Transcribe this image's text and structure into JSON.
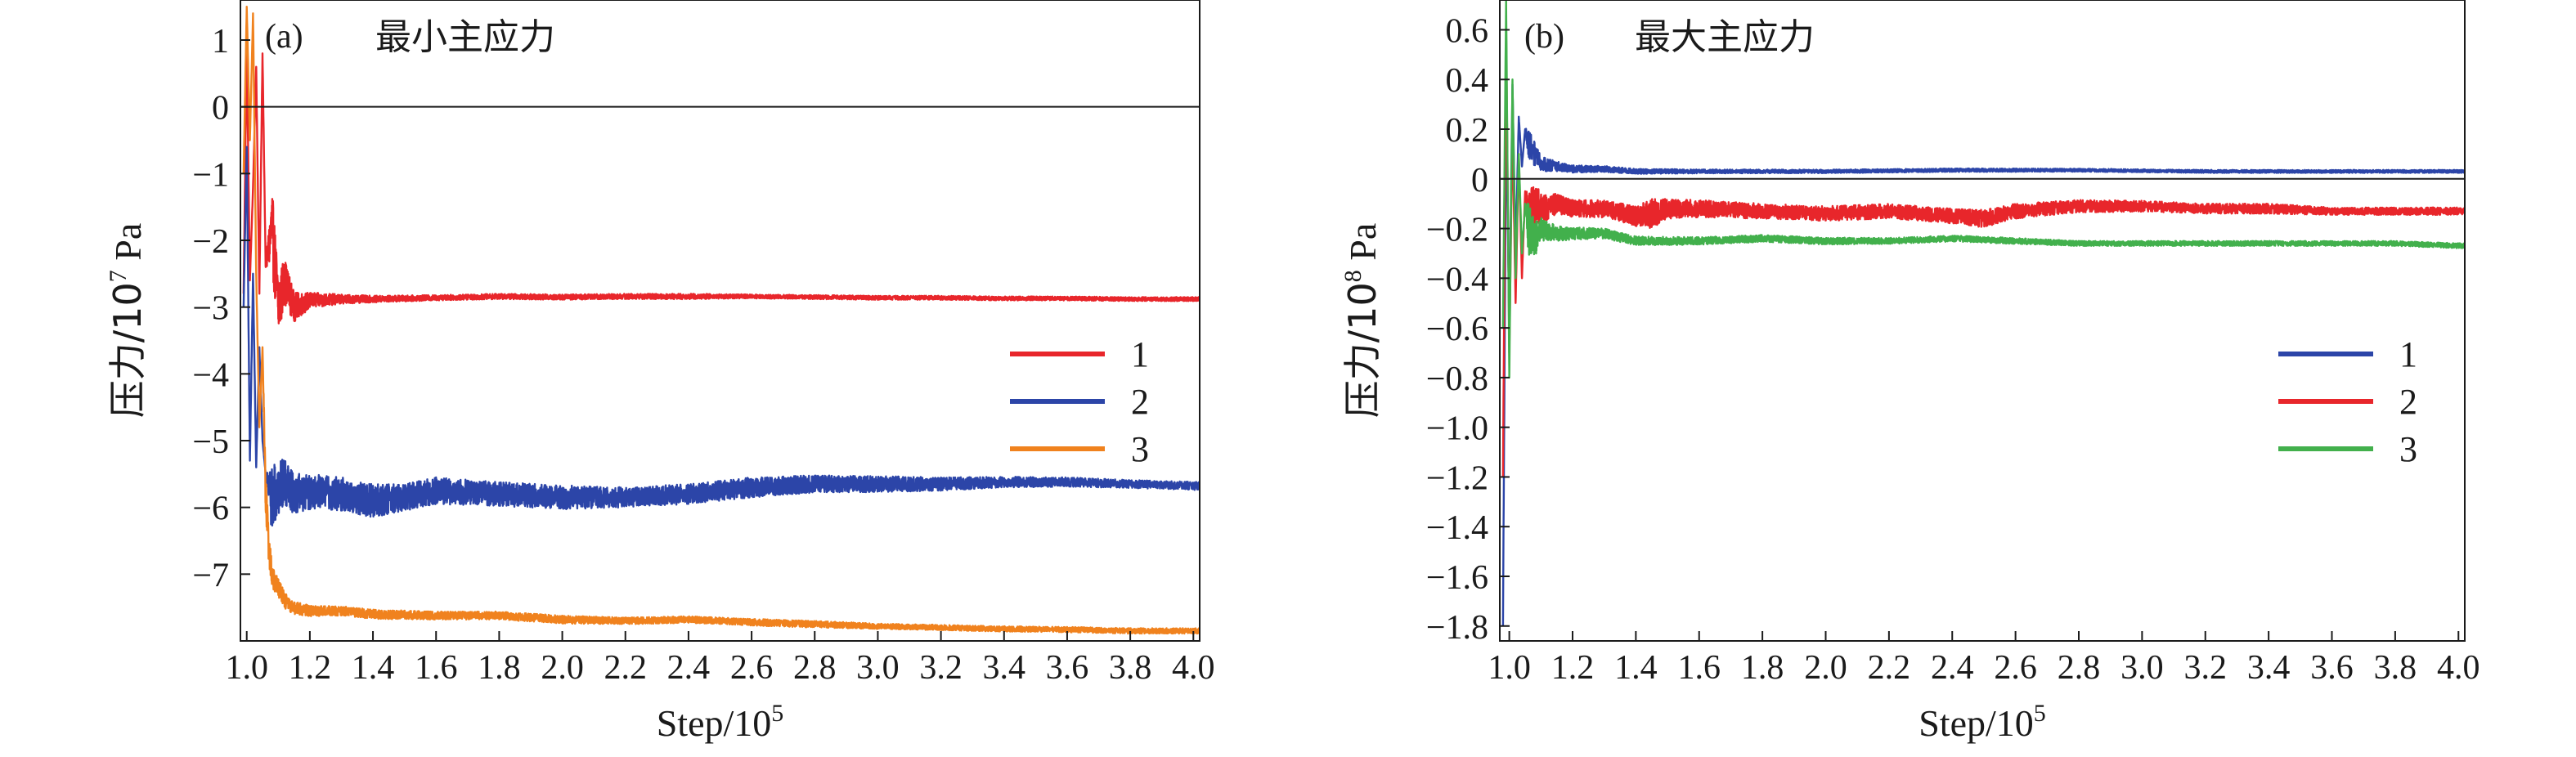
{
  "chart_data": [
    {
      "panel_label": "(a)",
      "title": "最小主应力",
      "type": "line",
      "ylabel_main": "压力/10",
      "ylabel_exp": "7",
      "ylabel_unit": " Pa",
      "xlabel_main": "Step/10",
      "xlabel_exp": "5",
      "xlim": [
        0.98,
        4.02
      ],
      "ylim": [
        -8.0,
        1.6
      ],
      "x_ticks": [
        1.0,
        1.2,
        1.4,
        1.6,
        1.8,
        2.0,
        2.2,
        2.4,
        2.6,
        2.8,
        3.0,
        3.2,
        3.4,
        3.6,
        3.8,
        4.0
      ],
      "x_tick_labels": [
        "1.0",
        "1.2",
        "1.4",
        "1.6",
        "1.8",
        "2.0",
        "2.2",
        "2.4",
        "2.6",
        "2.8",
        "3.0",
        "3.2",
        "3.4",
        "3.6",
        "3.8",
        "4.0"
      ],
      "y_ticks": [
        1,
        0,
        -1,
        -2,
        -3,
        -4,
        -5,
        -6,
        -7
      ],
      "y_tick_labels": [
        "1",
        "0",
        "−1",
        "−2",
        "−3",
        "−4",
        "−5",
        "−6",
        "−7"
      ],
      "reference_line_y": 0,
      "legend_position": "center-right",
      "grid": false,
      "series": [
        {
          "name": "1",
          "color": "#e8262b",
          "x": [
            0.99,
            1.0,
            1.01,
            1.02,
            1.03,
            1.04,
            1.05,
            1.06,
            1.08,
            1.1,
            1.12,
            1.15,
            1.2,
            1.3,
            1.4,
            1.6,
            1.8,
            2.0,
            2.2,
            2.4,
            2.6,
            2.8,
            3.0,
            3.2,
            3.4,
            3.6,
            3.8,
            4.02
          ],
          "y": [
            -2.8,
            0.9,
            -2.6,
            -1.2,
            0.6,
            -2.8,
            0.8,
            -2.4,
            -1.8,
            -3.0,
            -2.6,
            -3.0,
            -2.9,
            -2.88,
            -2.88,
            -2.86,
            -2.84,
            -2.85,
            -2.84,
            -2.84,
            -2.84,
            -2.85,
            -2.86,
            -2.86,
            -2.87,
            -2.87,
            -2.88,
            -2.88
          ],
          "noise": [
            0,
            0,
            0,
            0,
            0,
            0,
            0,
            0,
            0.6,
            0.5,
            0.35,
            0.22,
            0.12,
            0.07,
            0.05,
            0.04,
            0.04,
            0.04,
            0.04,
            0.04,
            0.03,
            0.03,
            0.03,
            0.03,
            0.03,
            0.03,
            0.03,
            0.03
          ]
        },
        {
          "name": "2",
          "color": "#2c45a8",
          "x": [
            0.99,
            1.0,
            1.01,
            1.02,
            1.03,
            1.04,
            1.05,
            1.06,
            1.08,
            1.1,
            1.12,
            1.15,
            1.2,
            1.3,
            1.4,
            1.5,
            1.6,
            1.8,
            2.0,
            2.2,
            2.4,
            2.6,
            2.8,
            3.0,
            3.2,
            3.4,
            3.6,
            3.8,
            4.02
          ],
          "y": [
            -3.0,
            -0.6,
            -5.3,
            -2.5,
            -5.4,
            -3.6,
            -5.0,
            -5.5,
            -5.9,
            -5.7,
            -5.6,
            -5.8,
            -5.75,
            -5.8,
            -5.9,
            -5.85,
            -5.75,
            -5.8,
            -5.85,
            -5.85,
            -5.8,
            -5.7,
            -5.65,
            -5.65,
            -5.65,
            -5.62,
            -5.62,
            -5.65,
            -5.68
          ],
          "noise": [
            0,
            0,
            0,
            0,
            0,
            0,
            0,
            0,
            0.5,
            0.4,
            0.35,
            0.3,
            0.28,
            0.25,
            0.25,
            0.2,
            0.2,
            0.18,
            0.18,
            0.15,
            0.15,
            0.15,
            0.13,
            0.12,
            0.1,
            0.08,
            0.07,
            0.06,
            0.06
          ]
        },
        {
          "name": "3",
          "color": "#f0821e",
          "x": [
            0.99,
            1.0,
            1.01,
            1.02,
            1.03,
            1.04,
            1.05,
            1.06,
            1.07,
            1.08,
            1.1,
            1.12,
            1.15,
            1.2,
            1.3,
            1.4,
            1.6,
            1.8,
            2.0,
            2.2,
            2.4,
            2.6,
            2.8,
            3.0,
            3.2,
            3.4,
            3.6,
            3.8,
            4.02
          ],
          "y": [
            -1.0,
            1.5,
            -0.5,
            1.4,
            -2.5,
            -4.8,
            -3.6,
            -5.8,
            -6.6,
            -7.0,
            -7.2,
            -7.4,
            -7.5,
            -7.55,
            -7.55,
            -7.6,
            -7.62,
            -7.62,
            -7.68,
            -7.7,
            -7.68,
            -7.72,
            -7.75,
            -7.78,
            -7.8,
            -7.82,
            -7.83,
            -7.85,
            -7.85
          ],
          "noise": [
            0,
            0,
            0,
            0,
            0,
            0,
            0,
            0.3,
            0.25,
            0.2,
            0.15,
            0.12,
            0.1,
            0.08,
            0.07,
            0.07,
            0.06,
            0.06,
            0.06,
            0.05,
            0.05,
            0.05,
            0.05,
            0.04,
            0.04,
            0.04,
            0.04,
            0.04,
            0.04
          ]
        }
      ]
    },
    {
      "panel_label": "(b)",
      "title": "最大主应力",
      "type": "line",
      "ylabel_main": "压力/10",
      "ylabel_exp": "8",
      "ylabel_unit": " Pa",
      "xlabel_main": "Step/10",
      "xlabel_exp": "5",
      "xlim": [
        0.97,
        4.02
      ],
      "ylim": [
        -1.86,
        0.72
      ],
      "x_ticks": [
        1.0,
        1.2,
        1.4,
        1.6,
        1.8,
        2.0,
        2.2,
        2.4,
        2.6,
        2.8,
        3.0,
        3.2,
        3.4,
        3.6,
        3.8,
        4.0
      ],
      "x_tick_labels": [
        "1.0",
        "1.2",
        "1.4",
        "1.6",
        "1.8",
        "2.0",
        "2.2",
        "2.4",
        "2.6",
        "2.8",
        "3.0",
        "3.2",
        "3.4",
        "3.6",
        "3.8",
        "4.0"
      ],
      "y_ticks": [
        0.6,
        0.4,
        0.2,
        0,
        -0.2,
        -0.4,
        -0.6,
        -0.8,
        -1.0,
        -1.2,
        -1.4,
        -1.6,
        -1.8
      ],
      "y_tick_labels": [
        "0.6",
        "0.4",
        "0.2",
        "0",
        "−0.2",
        "−0.4",
        "−0.6",
        "−0.8",
        "−1.0",
        "−1.2",
        "−1.4",
        "−1.6",
        "−1.8"
      ],
      "reference_line_y": 0,
      "legend_position": "center-right",
      "grid": false,
      "series": [
        {
          "name": "1",
          "color": "#2c45a8",
          "x": [
            0.98,
            0.99,
            1.0,
            1.01,
            1.02,
            1.03,
            1.04,
            1.05,
            1.06,
            1.08,
            1.1,
            1.15,
            1.2,
            1.3,
            1.4,
            1.6,
            2.0,
            2.4,
            2.8,
            3.2,
            3.6,
            4.02
          ],
          "y": [
            -1.8,
            0.3,
            -0.6,
            0.38,
            -0.3,
            0.25,
            0.05,
            0.2,
            0.15,
            0.1,
            0.06,
            0.05,
            0.04,
            0.04,
            0.03,
            0.03,
            0.03,
            0.035,
            0.035,
            0.03,
            0.03,
            0.03
          ],
          "noise": [
            0,
            0,
            0,
            0,
            0,
            0,
            0,
            0,
            0.06,
            0.05,
            0.03,
            0.02,
            0.015,
            0.012,
            0.01,
            0.008,
            0.007,
            0.007,
            0.006,
            0.006,
            0.006,
            0.006
          ]
        },
        {
          "name": "2",
          "color": "#e8262b",
          "x": [
            0.98,
            0.99,
            1.0,
            1.01,
            1.02,
            1.03,
            1.04,
            1.05,
            1.06,
            1.08,
            1.1,
            1.15,
            1.2,
            1.3,
            1.4,
            1.45,
            1.5,
            1.6,
            1.8,
            2.0,
            2.2,
            2.4,
            2.5,
            2.6,
            2.8,
            3.0,
            3.2,
            3.4,
            3.6,
            3.8,
            4.02
          ],
          "y": [
            -1.2,
            0.6,
            -0.7,
            0.2,
            -0.5,
            0.1,
            -0.4,
            -0.05,
            -0.15,
            -0.1,
            -0.12,
            -0.1,
            -0.12,
            -0.12,
            -0.15,
            -0.14,
            -0.12,
            -0.12,
            -0.13,
            -0.14,
            -0.13,
            -0.15,
            -0.16,
            -0.13,
            -0.11,
            -0.11,
            -0.12,
            -0.12,
            -0.13,
            -0.13,
            -0.13
          ],
          "noise": [
            0,
            0,
            0,
            0,
            0,
            0,
            0,
            0,
            0.12,
            0.09,
            0.06,
            0.04,
            0.035,
            0.035,
            0.04,
            0.06,
            0.04,
            0.035,
            0.03,
            0.03,
            0.03,
            0.03,
            0.035,
            0.03,
            0.025,
            0.022,
            0.02,
            0.02,
            0.015,
            0.015,
            0.015
          ]
        },
        {
          "name": "3",
          "color": "#42b04c",
          "x": [
            0.98,
            0.99,
            1.0,
            1.01,
            1.02,
            1.03,
            1.04,
            1.05,
            1.06,
            1.08,
            1.1,
            1.15,
            1.2,
            1.3,
            1.4,
            1.6,
            1.8,
            2.0,
            2.2,
            2.4,
            2.6,
            2.8,
            3.0,
            3.2,
            3.4,
            3.6,
            3.8,
            4.02
          ],
          "y": [
            -0.6,
            0.72,
            -0.8,
            0.4,
            -0.4,
            0.1,
            -0.3,
            -0.1,
            -0.2,
            -0.25,
            -0.2,
            -0.22,
            -0.22,
            -0.22,
            -0.25,
            -0.25,
            -0.24,
            -0.25,
            -0.25,
            -0.24,
            -0.25,
            -0.26,
            -0.26,
            -0.26,
            -0.26,
            -0.26,
            -0.26,
            -0.27
          ],
          "noise": [
            0,
            0,
            0,
            0,
            0,
            0,
            0,
            0,
            0.12,
            0.08,
            0.05,
            0.03,
            0.025,
            0.02,
            0.018,
            0.015,
            0.014,
            0.014,
            0.012,
            0.012,
            0.012,
            0.01,
            0.01,
            0.01,
            0.01,
            0.01,
            0.01,
            0.01
          ]
        }
      ]
    }
  ]
}
